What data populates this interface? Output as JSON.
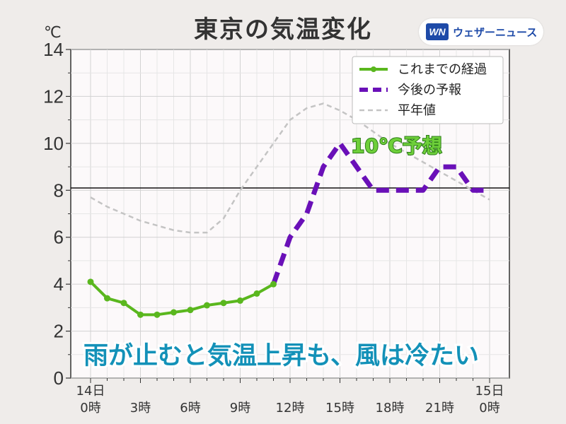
{
  "header": {
    "title": "東京の気温変化",
    "unit": "℃",
    "logo_mark": "WN",
    "logo_text": "ウェザーニュース"
  },
  "chart_data": {
    "type": "line",
    "title": "東京の気温変化",
    "ylabel": "℃",
    "ylim": [
      0,
      14
    ],
    "xlim": [
      0,
      24
    ],
    "yticks": [
      0,
      2,
      4,
      6,
      8,
      10,
      12,
      14
    ],
    "x_tick_labels": [
      {
        "x": 0,
        "lines": [
          "14日",
          "0時"
        ]
      },
      {
        "x": 3,
        "lines": [
          "3時"
        ]
      },
      {
        "x": 6,
        "lines": [
          "6時"
        ]
      },
      {
        "x": 9,
        "lines": [
          "9時"
        ]
      },
      {
        "x": 12,
        "lines": [
          "12時"
        ]
      },
      {
        "x": 15,
        "lines": [
          "15時"
        ]
      },
      {
        "x": 18,
        "lines": [
          "18時"
        ]
      },
      {
        "x": 21,
        "lines": [
          "21時"
        ]
      },
      {
        "x": 24,
        "lines": [
          "15日",
          "0時"
        ]
      }
    ],
    "grid": true,
    "reference_line": 8.1,
    "legend_placement": "top-right",
    "series": [
      {
        "name": "これまでの経過",
        "color": "#5ab71e",
        "style": "solid-markers",
        "points": [
          [
            0,
            4.1
          ],
          [
            1,
            3.4
          ],
          [
            2,
            3.2
          ],
          [
            3,
            2.7
          ],
          [
            4,
            2.7
          ],
          [
            5,
            2.8
          ],
          [
            6,
            2.9
          ],
          [
            7,
            3.1
          ],
          [
            8,
            3.2
          ],
          [
            9,
            3.3
          ],
          [
            10,
            3.6
          ],
          [
            11,
            4.0
          ]
        ]
      },
      {
        "name": "今後の予報",
        "color": "#6a10b8",
        "style": "dashed",
        "points": [
          [
            11,
            4.0
          ],
          [
            12,
            6.0
          ],
          [
            13,
            7.0
          ],
          [
            14,
            9.0
          ],
          [
            15,
            10.0
          ],
          [
            16,
            9.0
          ],
          [
            17,
            8.0
          ],
          [
            18,
            8.0
          ],
          [
            19,
            8.0
          ],
          [
            20,
            8.0
          ],
          [
            21,
            9.0
          ],
          [
            22,
            9.0
          ],
          [
            23,
            8.0
          ],
          [
            24,
            8.0
          ]
        ]
      },
      {
        "name": "平年値",
        "color": "#c4c4c4",
        "style": "light-dashed",
        "points": [
          [
            0,
            7.7
          ],
          [
            1,
            7.3
          ],
          [
            2,
            7.0
          ],
          [
            3,
            6.7
          ],
          [
            4,
            6.5
          ],
          [
            5,
            6.3
          ],
          [
            6,
            6.2
          ],
          [
            7,
            6.2
          ],
          [
            8,
            6.8
          ],
          [
            9,
            8.0
          ],
          [
            10,
            9.0
          ],
          [
            11,
            10.0
          ],
          [
            12,
            11.0
          ],
          [
            13,
            11.5
          ],
          [
            14,
            11.7
          ],
          [
            15,
            11.4
          ],
          [
            16,
            11.0
          ],
          [
            17,
            10.5
          ],
          [
            18,
            10.0
          ],
          [
            19,
            9.6
          ],
          [
            20,
            9.2
          ],
          [
            21,
            8.8
          ],
          [
            22,
            8.4
          ],
          [
            23,
            8.0
          ],
          [
            24,
            7.6
          ]
        ]
      }
    ],
    "annotations": {
      "peak": "10℃予想",
      "headline": "雨が止むと気温上昇も、風は冷たい"
    }
  }
}
